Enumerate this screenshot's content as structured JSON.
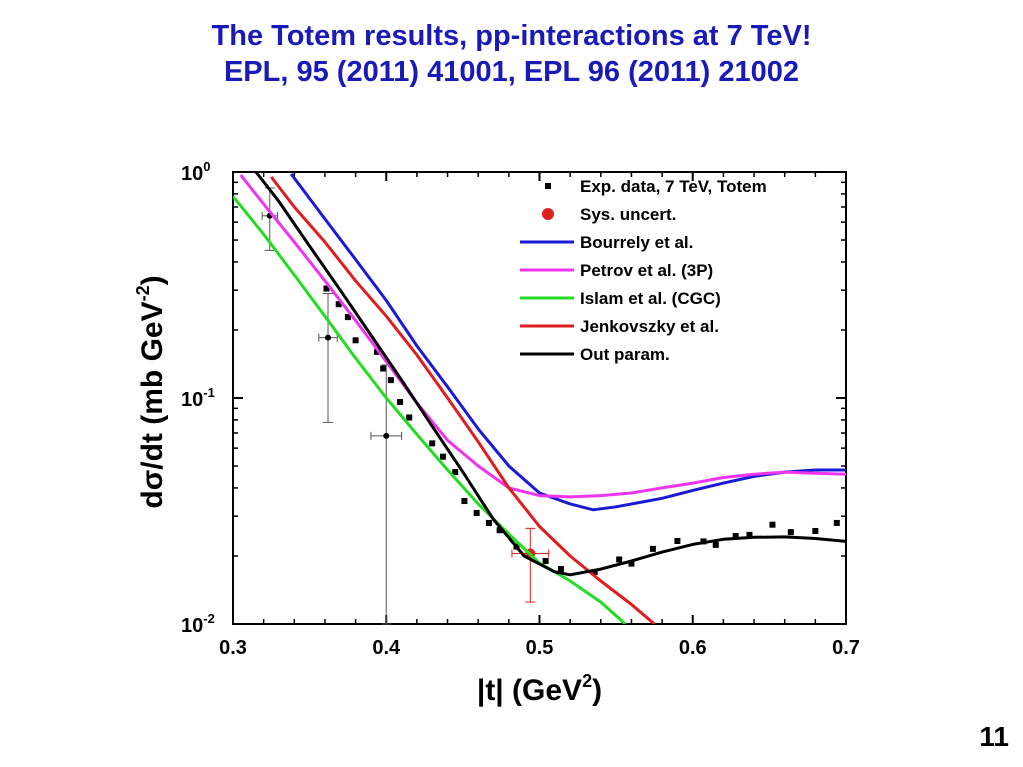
{
  "slide": {
    "title_line1": "The Totem results, pp-interactions at 7 TeV!",
    "title_line2": "EPL, 95 (2011) 41001, EPL 96 (2011) 21002",
    "page_number": "11"
  },
  "chart_data": {
    "type": "line",
    "title": "",
    "xlabel": "|t| (GeV",
    "xlabel_sup": "2",
    "xlabel_tail": ")",
    "ylabel": "dσ/dt (mb GeV",
    "ylabel_sup": "-2",
    "ylabel_tail": ")",
    "xlim": [
      0.3,
      0.7
    ],
    "ylim": [
      0.01,
      1.0
    ],
    "yscale": "log",
    "grid": false,
    "legend_position": "top-right",
    "x_ticks": [
      {
        "value": 0.3,
        "label": "0.3"
      },
      {
        "value": 0.4,
        "label": "0.4"
      },
      {
        "value": 0.5,
        "label": "0.5"
      },
      {
        "value": 0.6,
        "label": "0.6"
      },
      {
        "value": 0.7,
        "label": "0.7"
      }
    ],
    "y_ticks": [
      {
        "value": 1.0,
        "base": "10",
        "exp": "0"
      },
      {
        "value": 0.1,
        "base": "10",
        "exp": "-1"
      },
      {
        "value": 0.01,
        "base": "10",
        "exp": "-2"
      }
    ],
    "series": [
      {
        "name": "Exp. data, 7  TeV, Totem",
        "kind": "markers",
        "marker": "square",
        "color": "#000000",
        "points": [
          [
            0.361,
            0.305
          ],
          [
            0.369,
            0.26
          ],
          [
            0.375,
            0.228
          ],
          [
            0.38,
            0.18
          ],
          [
            0.394,
            0.16
          ],
          [
            0.398,
            0.135
          ],
          [
            0.403,
            0.12
          ],
          [
            0.409,
            0.096
          ],
          [
            0.415,
            0.082
          ],
          [
            0.43,
            0.063
          ],
          [
            0.437,
            0.055
          ],
          [
            0.445,
            0.047
          ],
          [
            0.451,
            0.035
          ],
          [
            0.459,
            0.031
          ],
          [
            0.467,
            0.028
          ],
          [
            0.474,
            0.026
          ],
          [
            0.485,
            0.022
          ],
          [
            0.493,
            0.02
          ],
          [
            0.504,
            0.019
          ],
          [
            0.514,
            0.0175
          ],
          [
            0.536,
            0.017
          ],
          [
            0.552,
            0.0193
          ],
          [
            0.56,
            0.0185
          ],
          [
            0.574,
            0.0215
          ],
          [
            0.59,
            0.0233
          ],
          [
            0.607,
            0.0232
          ],
          [
            0.615,
            0.0224
          ],
          [
            0.628,
            0.0245
          ],
          [
            0.637,
            0.0248
          ],
          [
            0.652,
            0.0275
          ],
          [
            0.664,
            0.0255
          ],
          [
            0.68,
            0.0258
          ],
          [
            0.694,
            0.028
          ]
        ]
      },
      {
        "name": "Sys. uncert.",
        "kind": "markers",
        "marker": "circle",
        "color": "#e0201c",
        "points": [
          [
            0.494,
            0.0205
          ]
        ],
        "errors": [
          {
            "xerr": 0.012,
            "ylow": 0.0125,
            "yhigh": 0.0265
          }
        ]
      },
      {
        "name": "",
        "kind": "errorbars",
        "marker": "dot",
        "color": "#000000",
        "points": [
          [
            0.324,
            0.64
          ],
          [
            0.362,
            0.185
          ],
          [
            0.4,
            0.068
          ]
        ],
        "errors": [
          {
            "xerr": 0.005,
            "ylow": 0.45,
            "yhigh": 0.85
          },
          {
            "xerr": 0.006,
            "ylow": 0.078,
            "yhigh": 0.29
          },
          {
            "xerr": 0.01,
            "ylow": 0.01,
            "yhigh": 0.14
          }
        ]
      },
      {
        "name": "Bourrely et al.",
        "kind": "line",
        "color": "#1a1ad6",
        "points": [
          [
            0.338,
            0.98
          ],
          [
            0.36,
            0.62
          ],
          [
            0.38,
            0.41
          ],
          [
            0.4,
            0.27
          ],
          [
            0.42,
            0.17
          ],
          [
            0.44,
            0.112
          ],
          [
            0.46,
            0.073
          ],
          [
            0.48,
            0.05
          ],
          [
            0.5,
            0.038
          ],
          [
            0.52,
            0.034
          ],
          [
            0.535,
            0.032
          ],
          [
            0.55,
            0.033
          ],
          [
            0.58,
            0.036
          ],
          [
            0.6,
            0.039
          ],
          [
            0.62,
            0.042
          ],
          [
            0.64,
            0.045
          ],
          [
            0.66,
            0.047
          ],
          [
            0.68,
            0.048
          ],
          [
            0.7,
            0.048
          ]
        ]
      },
      {
        "name": "Petrov et al. (3P)",
        "kind": "line",
        "color": "#f035f0",
        "points": [
          [
            0.305,
            0.97
          ],
          [
            0.32,
            0.72
          ],
          [
            0.34,
            0.49
          ],
          [
            0.36,
            0.33
          ],
          [
            0.38,
            0.22
          ],
          [
            0.4,
            0.145
          ],
          [
            0.42,
            0.095
          ],
          [
            0.44,
            0.065
          ],
          [
            0.46,
            0.05
          ],
          [
            0.48,
            0.04
          ],
          [
            0.5,
            0.037
          ],
          [
            0.52,
            0.0365
          ],
          [
            0.54,
            0.037
          ],
          [
            0.56,
            0.038
          ],
          [
            0.58,
            0.04
          ],
          [
            0.6,
            0.042
          ],
          [
            0.62,
            0.0445
          ],
          [
            0.64,
            0.046
          ],
          [
            0.66,
            0.047
          ],
          [
            0.68,
            0.0465
          ],
          [
            0.7,
            0.046
          ]
        ]
      },
      {
        "name": "Islam et al. (CGC)",
        "kind": "line",
        "color": "#22dd22",
        "points": [
          [
            0.3,
            0.78
          ],
          [
            0.32,
            0.53
          ],
          [
            0.34,
            0.35
          ],
          [
            0.36,
            0.23
          ],
          [
            0.38,
            0.15
          ],
          [
            0.4,
            0.1
          ],
          [
            0.42,
            0.069
          ],
          [
            0.44,
            0.048
          ],
          [
            0.46,
            0.034
          ],
          [
            0.48,
            0.025
          ],
          [
            0.5,
            0.0186
          ],
          [
            0.52,
            0.0155
          ],
          [
            0.54,
            0.0125
          ],
          [
            0.556,
            0.01
          ]
        ]
      },
      {
        "name": "Jenkovszky et al.",
        "kind": "line",
        "color": "#e01c1c",
        "points": [
          [
            0.325,
            0.95
          ],
          [
            0.34,
            0.7
          ],
          [
            0.36,
            0.49
          ],
          [
            0.38,
            0.33
          ],
          [
            0.4,
            0.23
          ],
          [
            0.42,
            0.155
          ],
          [
            0.44,
            0.1
          ],
          [
            0.46,
            0.064
          ],
          [
            0.48,
            0.04
          ],
          [
            0.5,
            0.027
          ],
          [
            0.52,
            0.02
          ],
          [
            0.54,
            0.0155
          ],
          [
            0.56,
            0.0122
          ],
          [
            0.575,
            0.01
          ]
        ]
      },
      {
        "name": "Out param.",
        "kind": "line",
        "color": "#000000",
        "points": [
          [
            0.315,
            1.0
          ],
          [
            0.33,
            0.74
          ],
          [
            0.35,
            0.47
          ],
          [
            0.37,
            0.3
          ],
          [
            0.39,
            0.19
          ],
          [
            0.41,
            0.12
          ],
          [
            0.43,
            0.075
          ],
          [
            0.45,
            0.047
          ],
          [
            0.47,
            0.029
          ],
          [
            0.49,
            0.02
          ],
          [
            0.51,
            0.017
          ],
          [
            0.52,
            0.0165
          ],
          [
            0.54,
            0.0175
          ],
          [
            0.56,
            0.019
          ],
          [
            0.58,
            0.0208
          ],
          [
            0.6,
            0.0225
          ],
          [
            0.62,
            0.0237
          ],
          [
            0.64,
            0.0242
          ],
          [
            0.66,
            0.0243
          ],
          [
            0.68,
            0.0239
          ],
          [
            0.7,
            0.0232
          ]
        ]
      }
    ]
  }
}
